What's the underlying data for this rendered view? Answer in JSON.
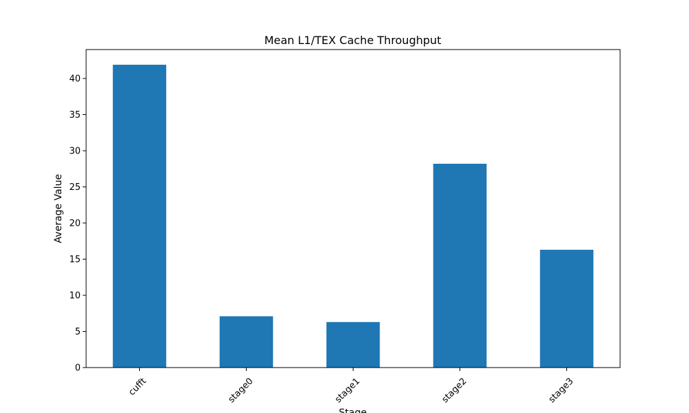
{
  "chart_data": {
    "type": "bar",
    "title": "Mean L1/TEX Cache Throughput",
    "xlabel": "Stage",
    "ylabel": "Average Value",
    "categories": [
      "cufft",
      "stage0",
      "stage1",
      "stage2",
      "stage3"
    ],
    "values": [
      41.9,
      7.1,
      6.3,
      28.2,
      16.3
    ],
    "ylim": [
      0,
      44
    ],
    "yticks": [
      0,
      5,
      10,
      15,
      20,
      25,
      30,
      35,
      40
    ],
    "grid": false,
    "legend": "none",
    "bar_color": "#1f77b4"
  }
}
